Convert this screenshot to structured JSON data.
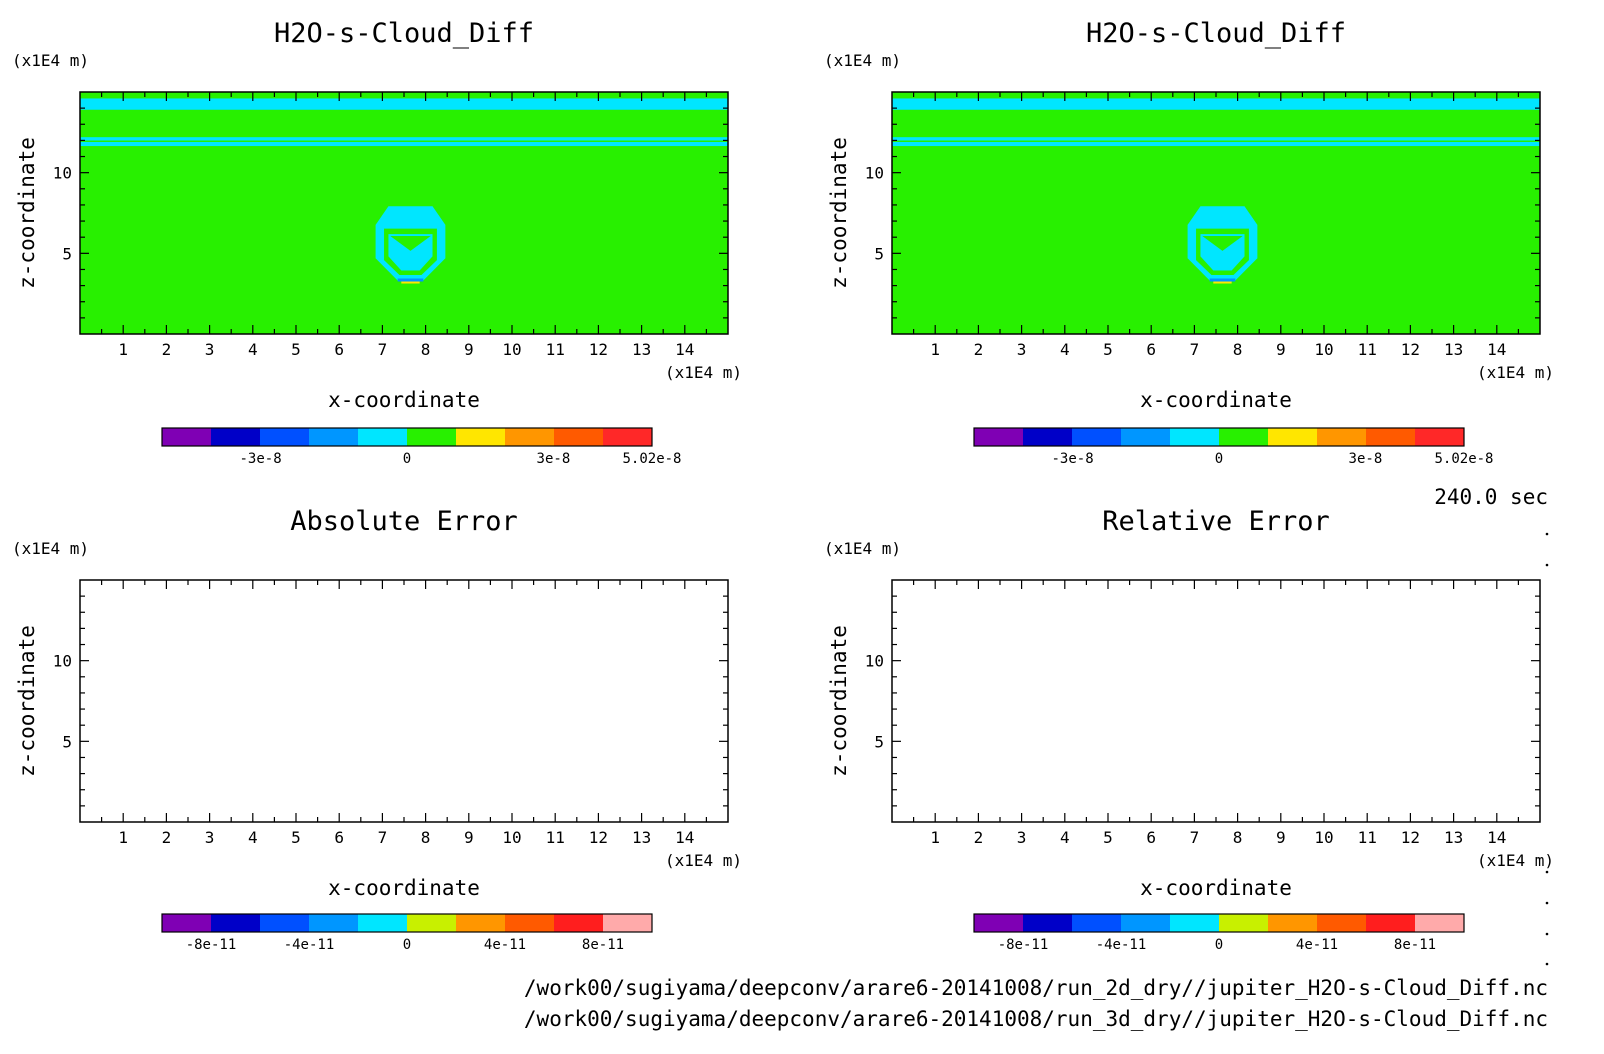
{
  "chart_data": [
    {
      "type": "heatmap",
      "title": "H2O-s-Cloud_Diff",
      "xlabel": "x-coordinate",
      "ylabel": "z-coordinate",
      "xunit": "(x1E4 m)",
      "yunit": "(x1E4 m)",
      "xlim": [
        0,
        15
      ],
      "ylim": [
        0,
        15
      ],
      "xticks": [
        "1",
        "2",
        "3",
        "4",
        "5",
        "6",
        "7",
        "8",
        "9",
        "10",
        "11",
        "12",
        "13",
        "14"
      ],
      "yticks": [
        "5",
        "10"
      ],
      "colorbar": {
        "range": [
          -5.02e-08,
          5.02e-08
        ],
        "colors": [
          "#7f00b4",
          "#0000c8",
          "#0050ff",
          "#0096ff",
          "#00e6ff",
          "#28f000",
          "#ffe600",
          "#ff9600",
          "#ff5a00",
          "#ff2828"
        ],
        "tick_labels": [
          {
            "label": "-3e-8",
            "value": -3e-08
          },
          {
            "label": "0",
            "value": 0
          },
          {
            "label": "3e-8",
            "value": 3e-08
          },
          {
            "label": "5.02e-8",
            "value": 5.02e-08
          }
        ]
      },
      "field": {
        "background": 0,
        "features": "top band and thin line near z=12 slightly negative; ring-shaped negative anomaly centred near x=7.6, z=5.4"
      }
    },
    {
      "type": "heatmap",
      "title": "H2O-s-Cloud_Diff",
      "xlabel": "x-coordinate",
      "ylabel": "z-coordinate",
      "xunit": "(x1E4 m)",
      "yunit": "(x1E4 m)",
      "xlim": [
        0,
        15
      ],
      "ylim": [
        0,
        15
      ],
      "xticks": [
        "1",
        "2",
        "3",
        "4",
        "5",
        "6",
        "7",
        "8",
        "9",
        "10",
        "11",
        "12",
        "13",
        "14"
      ],
      "yticks": [
        "5",
        "10"
      ],
      "colorbar": {
        "range": [
          -5.02e-08,
          5.02e-08
        ],
        "colors": [
          "#7f00b4",
          "#0000c8",
          "#0050ff",
          "#0096ff",
          "#00e6ff",
          "#28f000",
          "#ffe600",
          "#ff9600",
          "#ff5a00",
          "#ff2828"
        ],
        "tick_labels": [
          {
            "label": "-3e-8",
            "value": -3e-08
          },
          {
            "label": "0",
            "value": 0
          },
          {
            "label": "3e-8",
            "value": 3e-08
          },
          {
            "label": "5.02e-8",
            "value": 5.02e-08
          }
        ]
      },
      "field": {
        "background": 0,
        "features": "identical to left panel"
      }
    },
    {
      "type": "heatmap",
      "title": "Absolute Error",
      "xlabel": "x-coordinate",
      "ylabel": "z-coordinate",
      "xunit": "(x1E4 m)",
      "yunit": "(x1E4 m)",
      "xlim": [
        0,
        15
      ],
      "ylim": [
        0,
        15
      ],
      "xticks": [
        "1",
        "2",
        "3",
        "4",
        "5",
        "6",
        "7",
        "8",
        "9",
        "10",
        "11",
        "12",
        "13",
        "14"
      ],
      "yticks": [
        "5",
        "10"
      ],
      "colorbar": {
        "range": [
          -1e-10,
          1e-10
        ],
        "colors": [
          "#7f00b4",
          "#0000c8",
          "#0050ff",
          "#0096ff",
          "#00e6ff",
          "#c8f000",
          "#ff9600",
          "#ff5a00",
          "#ff1e1e",
          "#ffaaaa"
        ],
        "tick_labels": [
          {
            "label": "-8e-11",
            "value": -8e-11
          },
          {
            "label": "-4e-11",
            "value": -4e-11
          },
          {
            "label": "0",
            "value": 0
          },
          {
            "label": "4e-11",
            "value": 4e-11
          },
          {
            "label": "8e-11",
            "value": 8e-11
          }
        ]
      },
      "field": {
        "background": null,
        "features": "blank (no data drawn)"
      }
    },
    {
      "type": "heatmap",
      "title": "Relative Error",
      "xlabel": "x-coordinate",
      "ylabel": "z-coordinate",
      "xunit": "(x1E4 m)",
      "yunit": "(x1E4 m)",
      "xlim": [
        0,
        15
      ],
      "ylim": [
        0,
        15
      ],
      "xticks": [
        "1",
        "2",
        "3",
        "4",
        "5",
        "6",
        "7",
        "8",
        "9",
        "10",
        "11",
        "12",
        "13",
        "14"
      ],
      "yticks": [
        "5",
        "10"
      ],
      "colorbar": {
        "range": [
          -1e-10,
          1e-10
        ],
        "colors": [
          "#7f00b4",
          "#0000c8",
          "#0050ff",
          "#0096ff",
          "#00e6ff",
          "#c8f000",
          "#ff9600",
          "#ff5a00",
          "#ff1e1e",
          "#ffaaaa"
        ],
        "tick_labels": [
          {
            "label": "-8e-11",
            "value": -8e-11
          },
          {
            "label": "-4e-11",
            "value": -4e-11
          },
          {
            "label": "0",
            "value": 0
          },
          {
            "label": "4e-11",
            "value": 4e-11
          },
          {
            "label": "8e-11",
            "value": 8e-11
          }
        ]
      },
      "field": {
        "background": null,
        "features": "blank (no data drawn)"
      }
    }
  ],
  "time_label": "240.0 sec",
  "file_paths": [
    "/work00/sugiyama/deepconv/arare6-20141008/run_2d_dry//jupiter_H2O-s-Cloud_Diff.nc",
    "/work00/sugiyama/deepconv/arare6-20141008/run_3d_dry//jupiter_H2O-s-Cloud_Diff.nc"
  ]
}
